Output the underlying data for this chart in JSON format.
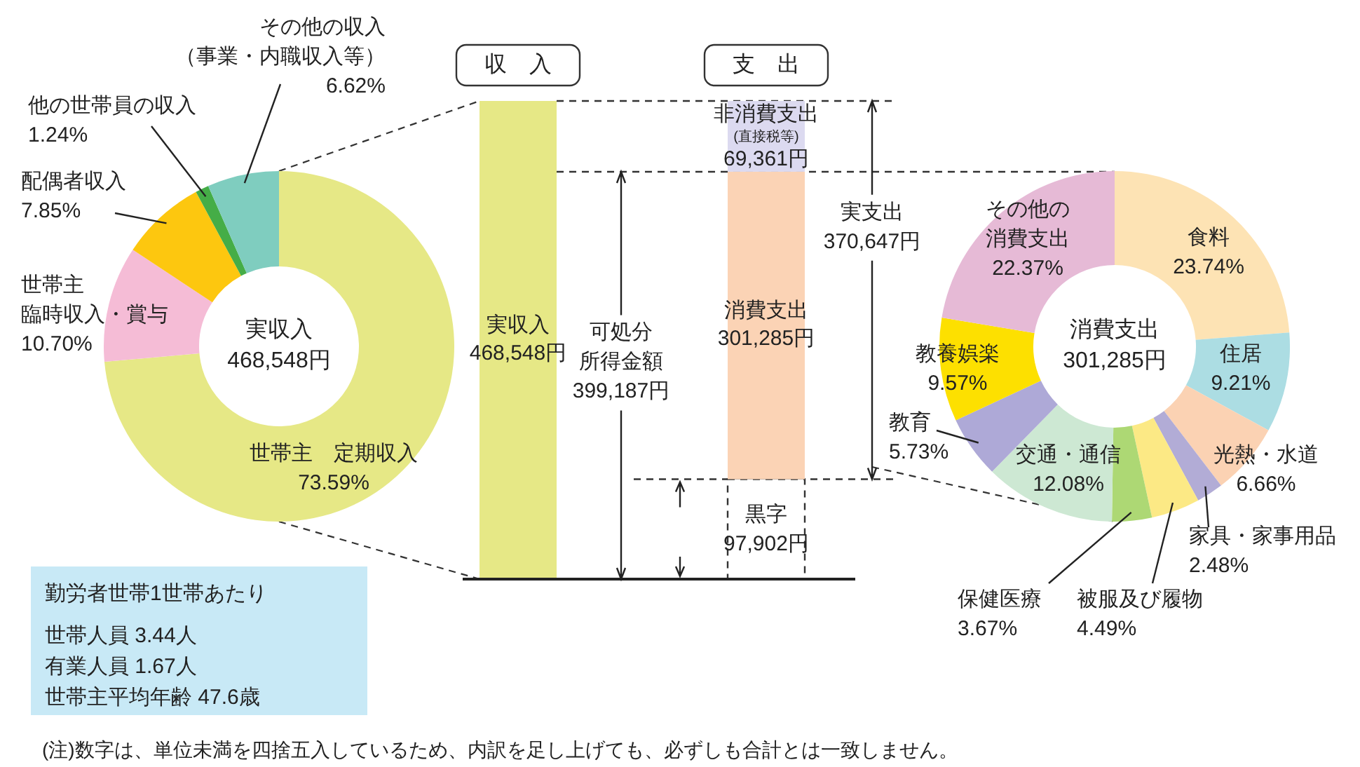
{
  "chart_data": [
    {
      "type": "donut",
      "categories": [
        "世帯主　定期収入",
        "世帯主臨時収入・賞与",
        "配偶者収入",
        "他の世帯員の収入",
        "その他の収入（事業・内職収入等）"
      ],
      "values": [
        73.59,
        10.7,
        7.85,
        1.24,
        6.62
      ],
      "value_labels": [
        "73.59%",
        "10.70%",
        "7.85%",
        "1.24%",
        "6.62%"
      ],
      "colors": [
        "#e6e886",
        "#f5bcd6",
        "#fdc70f",
        "#45ad47",
        "#7fcdbf"
      ],
      "annotations": [
        "実収入\n468,548円"
      ]
    },
    {
      "type": "bar",
      "stacked": true,
      "categories": [
        "収　入",
        "支　出"
      ],
      "series": [
        {
          "name": "実収入",
          "color": "#e6e886",
          "values": [
            468548,
            null
          ],
          "value_labels": [
            "468,548円",
            null
          ]
        },
        {
          "name": "黒字",
          "color": "#ffffff",
          "line_style": "dashed",
          "values": [
            null,
            97902
          ],
          "value_labels": [
            null,
            "97,902円"
          ]
        },
        {
          "name": "消費支出",
          "color": "#fbd3b5",
          "values": [
            null,
            301285
          ],
          "value_labels": [
            null,
            "301,285円"
          ]
        },
        {
          "name": "非消費支出\n(直接税等)",
          "color": "#dcdaf0",
          "values": [
            null,
            69361
          ],
          "value_labels": [
            null,
            "69,361円"
          ]
        }
      ],
      "ref_lines": [
        {
          "axis": "y",
          "value": 468548,
          "line_style": "dashed"
        },
        {
          "axis": "y",
          "value": 399187,
          "line_style": "dashed"
        },
        {
          "axis": "y",
          "value": 97902,
          "line_style": "dashed"
        }
      ],
      "annotations": [
        "可処分所得金額\n399,187円",
        "実支出\n370,647円"
      ]
    },
    {
      "type": "donut",
      "categories": [
        "食料",
        "住居",
        "光熱・水道",
        "家具・家事用品",
        "被服及び履物",
        "保健医療",
        "交通・通信",
        "教育",
        "教養娯楽",
        "その他の消費支出"
      ],
      "values": [
        23.74,
        9.21,
        6.66,
        2.48,
        4.49,
        3.67,
        12.08,
        5.73,
        9.57,
        22.37
      ],
      "value_labels": [
        "23.74%",
        "9.21%",
        "6.66%",
        "2.48%",
        "4.49%",
        "3.67%",
        "12.08%",
        "5.73%",
        "9.57%",
        "22.37%"
      ],
      "colors": [
        "#fde3b4",
        "#acdde3",
        "#fbd2b3",
        "#b2acd6",
        "#fce985",
        "#add874",
        "#cde8d3",
        "#aea9d7",
        "#fde000",
        "#e6bad6"
      ],
      "annotations": [
        "消費支出\n301,285円"
      ]
    },
    {
      "type": "other",
      "title": "勤労者世帯1世帯あたり",
      "annotations": [
        "世帯人員 3.44人",
        "有業人員 1.67人",
        "世帯主平均年齢 47.6歳"
      ]
    },
    {
      "type": "other",
      "annotations": [
        "(注)数字は、単位未満を四捨五入しているため、内訳を足し上げても、必ずしも合計とは一致しません。"
      ]
    }
  ]
}
